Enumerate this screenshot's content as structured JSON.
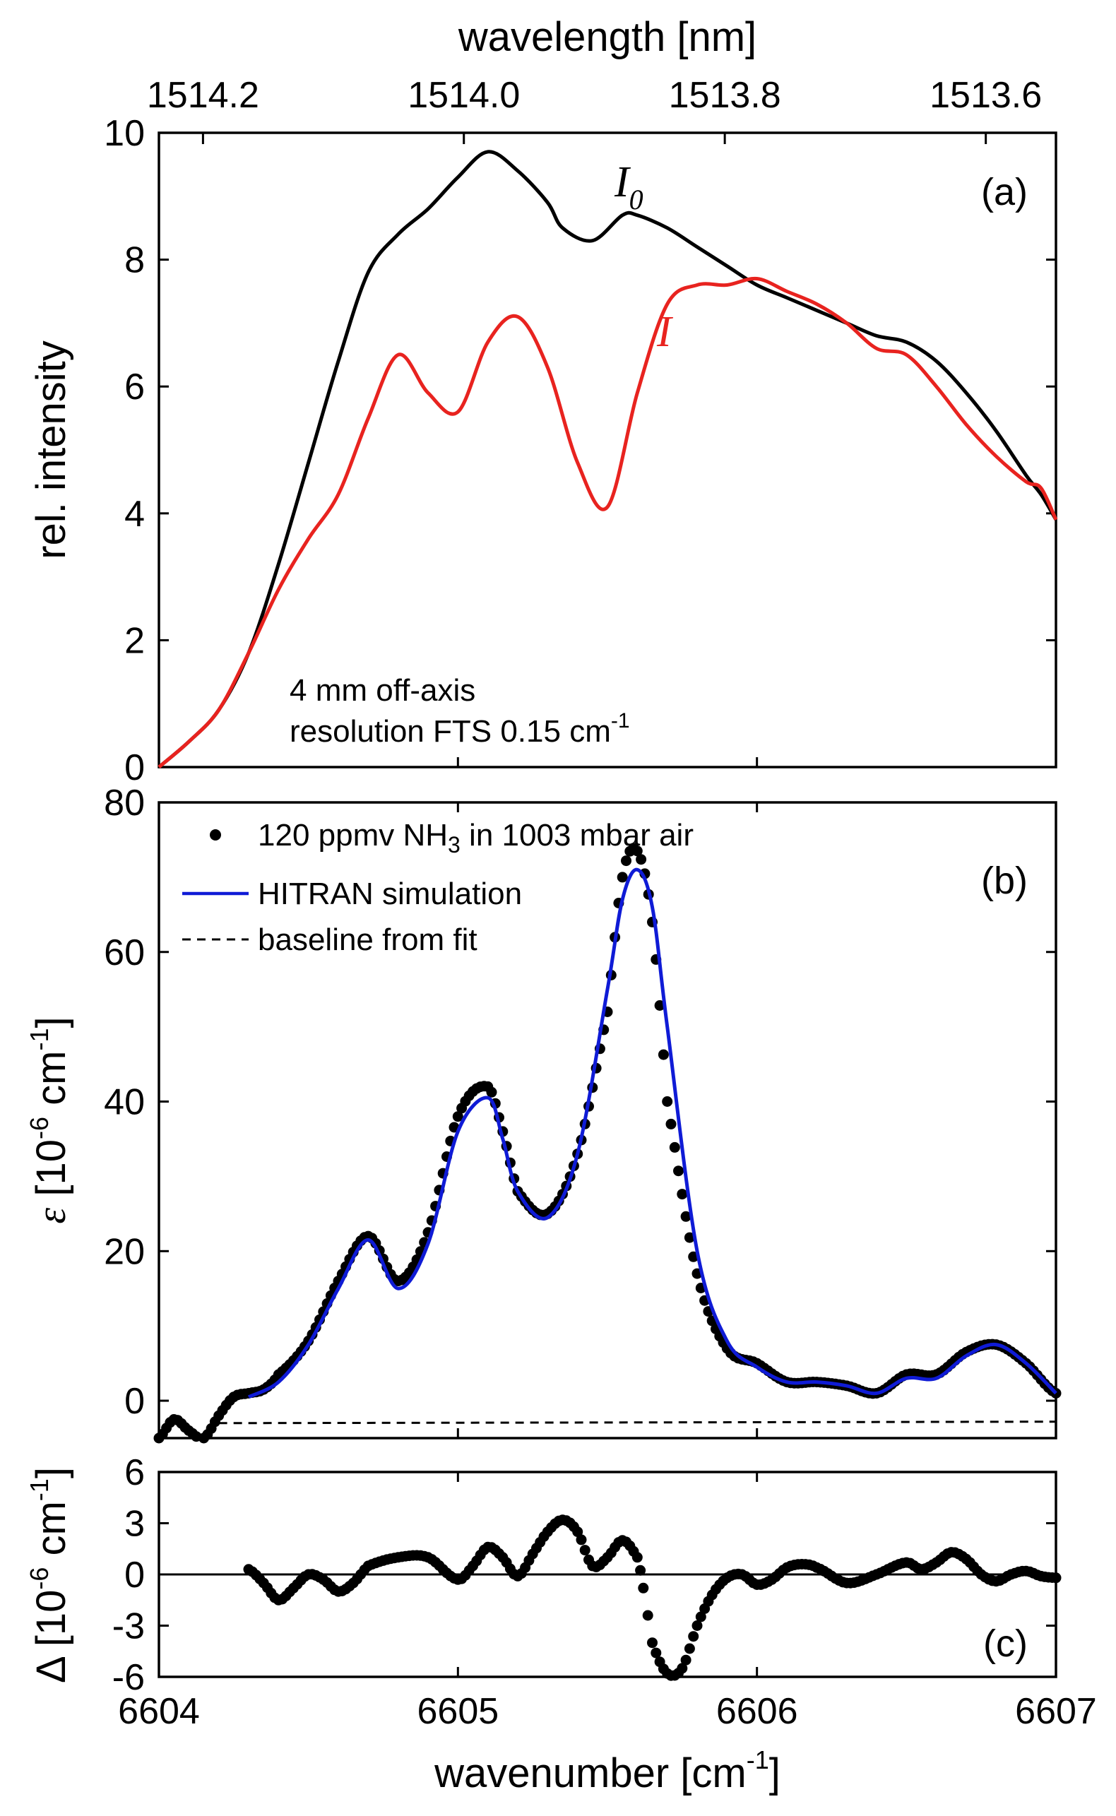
{
  "chart_data": [
    {
      "panel": "a",
      "type": "line",
      "panel_label": "(a)",
      "xlabel": "wavenumber [cm-1]",
      "xlim": [
        6604,
        6607
      ],
      "top_axis": {
        "label": "wavelength [nm]",
        "ticks": [
          1514.2,
          1514.0,
          1513.8,
          1513.6
        ],
        "tick_labels": [
          "1514.2",
          "1514.0",
          "1513.8",
          "1513.6"
        ]
      },
      "ylabel": "rel. intensity",
      "ylim": [
        0,
        10
      ],
      "yticks": [
        0,
        2,
        4,
        6,
        8,
        10
      ],
      "series": [
        {
          "name": "I0",
          "label_main": "I",
          "label_sub": "0",
          "color": "#000000",
          "x": [
            6604.0,
            6604.1,
            6604.2,
            6604.3,
            6604.4,
            6604.5,
            6604.6,
            6604.7,
            6604.8,
            6604.9,
            6605.0,
            6605.1,
            6605.2,
            6605.3,
            6605.35,
            6605.45,
            6605.55,
            6605.6,
            6605.7,
            6605.8,
            6605.9,
            6606.0,
            6606.1,
            6606.2,
            6606.3,
            6606.4,
            6606.5,
            6606.6,
            6606.7,
            6606.8,
            6606.9,
            6606.95,
            6607.0
          ],
          "y": [
            0.0,
            0.4,
            0.9,
            1.8,
            3.2,
            4.8,
            6.4,
            7.8,
            8.4,
            8.8,
            9.3,
            9.7,
            9.4,
            8.9,
            8.5,
            8.3,
            8.7,
            8.7,
            8.5,
            8.2,
            7.9,
            7.6,
            7.4,
            7.2,
            7.0,
            6.8,
            6.7,
            6.4,
            5.9,
            5.3,
            4.6,
            4.3,
            3.9
          ]
        },
        {
          "name": "I",
          "label_main": "I",
          "color": "#e8231f",
          "x": [
            6604.0,
            6604.1,
            6604.2,
            6604.3,
            6604.4,
            6604.5,
            6604.6,
            6604.7,
            6604.8,
            6604.9,
            6605.0,
            6605.1,
            6605.2,
            6605.3,
            6605.4,
            6605.5,
            6605.6,
            6605.7,
            6605.8,
            6605.9,
            6606.0,
            6606.1,
            6606.2,
            6606.3,
            6606.4,
            6606.5,
            6606.6,
            6606.7,
            6606.8,
            6606.9,
            6606.95,
            6607.0
          ],
          "y": [
            0.0,
            0.4,
            0.9,
            1.8,
            2.8,
            3.6,
            4.3,
            5.5,
            6.5,
            5.9,
            5.6,
            6.7,
            7.1,
            6.3,
            4.8,
            4.1,
            5.9,
            7.3,
            7.6,
            7.6,
            7.7,
            7.5,
            7.3,
            7.0,
            6.6,
            6.5,
            6.0,
            5.4,
            4.9,
            4.5,
            4.4,
            3.9
          ]
        }
      ],
      "annotations": [
        "4 mm off-axis",
        "resolution FTS 0.15 cm-1"
      ]
    },
    {
      "panel": "b",
      "type": "scatter",
      "panel_label": "(b)",
      "ylabel": "ε [10-6 cm-1]",
      "ylim": [
        -5,
        80
      ],
      "yticks": [
        0,
        20,
        40,
        60,
        80
      ],
      "legend": [
        "120 ppmv NH3 in 1003 mbar air",
        "HITRAN simulation",
        "baseline from fit"
      ],
      "legend_position": "top-left",
      "series": [
        {
          "name": "120 ppmv NH3 in 1003 mbar air",
          "style": "dots",
          "color": "#000000",
          "x": [
            6604.0,
            6604.05,
            6604.1,
            6604.15,
            6604.2,
            6604.25,
            6604.3,
            6604.35,
            6604.4,
            6604.5,
            6604.6,
            6604.7,
            6604.8,
            6604.9,
            6605.0,
            6605.1,
            6605.15,
            6605.2,
            6605.3,
            6605.4,
            6605.5,
            6605.55,
            6605.6,
            6605.65,
            6605.7,
            6605.8,
            6605.9,
            6606.0,
            6606.1,
            6606.2,
            6606.3,
            6606.4,
            6606.5,
            6606.6,
            6606.7,
            6606.8,
            6606.9,
            6607.0
          ],
          "y": [
            -5.0,
            -2.5,
            -4.0,
            -5.0,
            -2.0,
            0.5,
            1.0,
            1.5,
            3.5,
            8.0,
            16.0,
            22.0,
            16.0,
            22.5,
            38.0,
            42.0,
            36.0,
            28.0,
            25.0,
            33.0,
            52.0,
            70.0,
            73.5,
            64.0,
            40.0,
            17.0,
            7.0,
            5.0,
            2.5,
            2.5,
            2.0,
            1.0,
            3.5,
            3.5,
            6.5,
            7.5,
            5.0,
            1.0
          ]
        },
        {
          "name": "HITRAN simulation",
          "style": "line",
          "color": "#0f1bd6",
          "x": [
            6604.3,
            6604.4,
            6604.5,
            6604.6,
            6604.7,
            6604.8,
            6604.9,
            6605.0,
            6605.1,
            6605.15,
            6605.2,
            6605.3,
            6605.4,
            6605.5,
            6605.55,
            6605.6,
            6605.65,
            6605.7,
            6605.8,
            6605.9,
            6606.0,
            6606.1,
            6606.2,
            6606.3,
            6606.4,
            6606.5,
            6606.6,
            6606.7,
            6606.8,
            6606.9,
            6607.0
          ],
          "y": [
            0.5,
            2.5,
            7.5,
            15.0,
            21.5,
            15.0,
            21.0,
            36.0,
            40.5,
            35.0,
            28.0,
            24.5,
            33.0,
            55.0,
            67.0,
            71.0,
            66.0,
            50.0,
            20.0,
            8.0,
            4.5,
            2.5,
            2.5,
            2.0,
            1.0,
            3.0,
            3.0,
            6.0,
            7.5,
            5.0,
            1.0
          ]
        },
        {
          "name": "baseline from fit",
          "style": "dashed",
          "color": "#000000",
          "x": [
            6604.2,
            6607.0
          ],
          "y": [
            -3.0,
            -2.8
          ]
        }
      ]
    },
    {
      "panel": "c",
      "type": "scatter",
      "panel_label": "(c)",
      "ylabel": "Δ [10-6 cm-1]",
      "xlabel": "wavenumber [cm-1]",
      "xlim": [
        6604,
        6607
      ],
      "xticks": [
        6604,
        6605,
        6606,
        6607
      ],
      "ylim": [
        -6,
        6
      ],
      "yticks": [
        -6,
        -3,
        0,
        3,
        6
      ],
      "series": [
        {
          "name": "residual",
          "style": "dots",
          "color": "#000000",
          "x": [
            6604.3,
            6604.35,
            6604.4,
            6604.45,
            6604.5,
            6604.55,
            6604.6,
            6604.65,
            6604.7,
            6604.8,
            6604.9,
            6605.0,
            6605.05,
            6605.1,
            6605.15,
            6605.2,
            6605.25,
            6605.3,
            6605.35,
            6605.4,
            6605.45,
            6605.5,
            6605.55,
            6605.6,
            6605.62,
            6605.65,
            6605.7,
            6605.75,
            6605.8,
            6605.85,
            6605.9,
            6605.95,
            6606.0,
            6606.05,
            6606.1,
            6606.15,
            6606.2,
            6606.3,
            6606.4,
            6606.5,
            6606.55,
            6606.6,
            6606.65,
            6606.7,
            6606.75,
            6606.8,
            6606.85,
            6606.9,
            6606.95,
            6607.0
          ],
          "y": [
            0.3,
            -0.5,
            -1.5,
            -0.8,
            0.0,
            -0.3,
            -1.0,
            -0.5,
            0.5,
            1.0,
            1.0,
            -0.3,
            0.5,
            1.6,
            1.0,
            -0.1,
            1.2,
            2.5,
            3.2,
            2.5,
            0.5,
            1.0,
            2.0,
            1.0,
            -0.8,
            -4.0,
            -5.8,
            -5.5,
            -3.0,
            -1.2,
            -0.2,
            0.0,
            -0.6,
            -0.3,
            0.4,
            0.6,
            0.4,
            -0.5,
            0.0,
            0.7,
            0.3,
            0.7,
            1.3,
            0.9,
            0.0,
            -0.4,
            0.0,
            0.2,
            -0.1,
            -0.2
          ]
        }
      ],
      "zero_line": 0
    }
  ],
  "labels": {
    "panel_a_annotation_1": "4 mm off-axis",
    "panel_a_annotation_2_main": "resolution FTS 0.15 cm",
    "sup_minus1": "-1",
    "sup_minus6": "-6",
    "sub_3": "3",
    "top_axis_title": "wavelength [nm]",
    "bottom_axis_title_main": "wavenumber [cm",
    "bottom_axis_title_end": "]",
    "ylabel_a": "rel. intensity",
    "ylabel_b_symbol": "ε",
    "ylabel_b_main": "[10",
    "ylabel_b_unit": "cm",
    "ylabel_b_end": "]",
    "ylabel_c_symbol": "Δ",
    "ylabel_c_main": "[10",
    "ylabel_c_unit": "cm",
    "ylabel_c_end": "]",
    "legend_b_1_main": "120 ppmv NH",
    "legend_b_1_tail": " in 1003 mbar air",
    "legend_b_2": "HITRAN simulation",
    "legend_b_3": "baseline from fit"
  },
  "colors": {
    "black": "#000000",
    "red": "#e8231f",
    "blue": "#0f1bd6"
  }
}
